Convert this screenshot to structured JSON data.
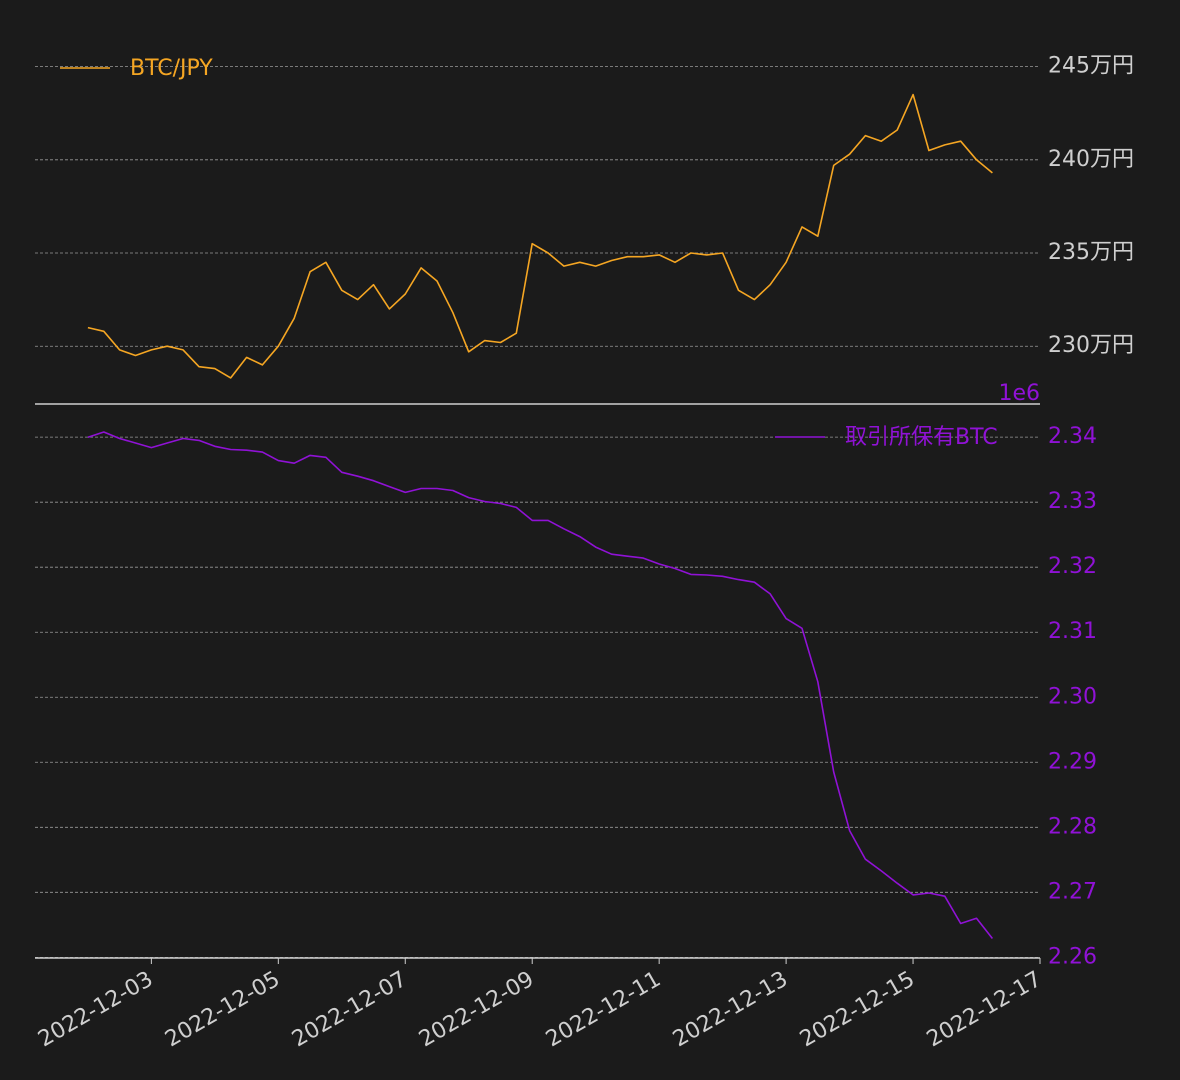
{
  "chart_data": [
    {
      "type": "line",
      "color": "#f5a623",
      "grid": true,
      "legend": "upper left",
      "x": [
        "2022-12-02T00:00",
        "2022-12-02T06:00",
        "2022-12-02T12:00",
        "2022-12-02T18:00",
        "2022-12-03T00:00",
        "2022-12-03T06:00",
        "2022-12-03T12:00",
        "2022-12-03T18:00",
        "2022-12-04T00:00",
        "2022-12-04T06:00",
        "2022-12-04T12:00",
        "2022-12-04T18:00",
        "2022-12-05T00:00",
        "2022-12-05T06:00",
        "2022-12-05T12:00",
        "2022-12-05T18:00",
        "2022-12-06T00:00",
        "2022-12-06T06:00",
        "2022-12-06T12:00",
        "2022-12-06T18:00",
        "2022-12-07T00:00",
        "2022-12-07T06:00",
        "2022-12-07T12:00",
        "2022-12-07T18:00",
        "2022-12-08T00:00",
        "2022-12-08T06:00",
        "2022-12-08T12:00",
        "2022-12-08T18:00",
        "2022-12-09T00:00",
        "2022-12-09T06:00",
        "2022-12-09T12:00",
        "2022-12-09T18:00",
        "2022-12-10T00:00",
        "2022-12-10T06:00",
        "2022-12-10T12:00",
        "2022-12-10T18:00",
        "2022-12-11T00:00",
        "2022-12-11T06:00",
        "2022-12-11T12:00",
        "2022-12-11T18:00",
        "2022-12-12T00:00",
        "2022-12-12T06:00",
        "2022-12-12T12:00",
        "2022-12-12T18:00",
        "2022-12-13T00:00",
        "2022-12-13T06:00",
        "2022-12-13T12:00",
        "2022-12-13T18:00",
        "2022-12-14T00:00",
        "2022-12-14T06:00",
        "2022-12-14T12:00",
        "2022-12-14T18:00",
        "2022-12-15T00:00",
        "2022-12-15T06:00",
        "2022-12-15T12:00",
        "2022-12-15T18:00",
        "2022-12-16T00:00",
        "2022-12-16T06:00"
      ],
      "xlim": [
        "2022-12-01T04:00",
        "2022-12-17T00:00"
      ],
      "series": [
        {
          "name": "BTC/JPY",
          "color": "#f5a623",
          "values": [
            2310000,
            2308000,
            2298000,
            2295000,
            2298000,
            2300000,
            2298000,
            2289000,
            2288000,
            2283000,
            2294000,
            2290000,
            2300000,
            2315000,
            2340000,
            2345000,
            2330000,
            2325000,
            2333000,
            2320000,
            2328000,
            2342000,
            2335000,
            2318000,
            2297000,
            2303000,
            2302000,
            2307000,
            2355000,
            2350000,
            2343000,
            2345000,
            2343000,
            2346000,
            2348000,
            2348000,
            2349000,
            2345000,
            2350000,
            2349000,
            2350000,
            2330000,
            2325000,
            2333000,
            2345000,
            2364000,
            2359000,
            2397000,
            2403000,
            2413000,
            2410000,
            2416000,
            2435000,
            2405000,
            2408000,
            2410000,
            2400000,
            2393000
          ]
        }
      ],
      "ylim": [
        2269000,
        2475000
      ],
      "yticks": [
        {
          "value": 2300000,
          "label": "230万円"
        },
        {
          "value": 2350000,
          "label": "235万円"
        },
        {
          "value": 2400000,
          "label": "240万円"
        },
        {
          "value": 2450000,
          "label": "245万円"
        }
      ]
    },
    {
      "type": "line",
      "color": "#9012d6",
      "grid": true,
      "legend": "upper right",
      "x": [
        "2022-12-02T00:00",
        "2022-12-02T06:00",
        "2022-12-02T12:00",
        "2022-12-02T18:00",
        "2022-12-03T00:00",
        "2022-12-03T06:00",
        "2022-12-03T12:00",
        "2022-12-03T18:00",
        "2022-12-04T00:00",
        "2022-12-04T06:00",
        "2022-12-04T12:00",
        "2022-12-04T18:00",
        "2022-12-05T00:00",
        "2022-12-05T06:00",
        "2022-12-05T12:00",
        "2022-12-05T18:00",
        "2022-12-06T00:00",
        "2022-12-06T06:00",
        "2022-12-06T12:00",
        "2022-12-06T18:00",
        "2022-12-07T00:00",
        "2022-12-07T06:00",
        "2022-12-07T12:00",
        "2022-12-07T18:00",
        "2022-12-08T00:00",
        "2022-12-08T06:00",
        "2022-12-08T12:00",
        "2022-12-08T18:00",
        "2022-12-09T00:00",
        "2022-12-09T06:00",
        "2022-12-09T12:00",
        "2022-12-09T18:00",
        "2022-12-10T00:00",
        "2022-12-10T06:00",
        "2022-12-10T12:00",
        "2022-12-10T18:00",
        "2022-12-11T00:00",
        "2022-12-11T06:00",
        "2022-12-11T12:00",
        "2022-12-11T18:00",
        "2022-12-12T00:00",
        "2022-12-12T06:00",
        "2022-12-12T12:00",
        "2022-12-12T18:00",
        "2022-12-13T00:00",
        "2022-12-13T06:00",
        "2022-12-13T12:00",
        "2022-12-13T18:00",
        "2022-12-14T00:00",
        "2022-12-14T06:00",
        "2022-12-14T12:00",
        "2022-12-14T18:00",
        "2022-12-15T00:00",
        "2022-12-15T06:00",
        "2022-12-15T12:00",
        "2022-12-15T18:00",
        "2022-12-16T00:00",
        "2022-12-16T06:00"
      ],
      "xlim": [
        "2022-12-01T04:00",
        "2022-12-17T00:00"
      ],
      "xticks": [
        "2022-12-03",
        "2022-12-05",
        "2022-12-07",
        "2022-12-09",
        "2022-12-11",
        "2022-12-13",
        "2022-12-15",
        "2022-12-17"
      ],
      "series": [
        {
          "name": "取引所保有BTC",
          "color": "#9012d6",
          "values": [
            2340000,
            2340800,
            2339800,
            2339100,
            2338400,
            2339100,
            2339800,
            2339500,
            2338600,
            2338100,
            2338000,
            2337700,
            2336400,
            2336000,
            2337200,
            2336900,
            2334600,
            2334000,
            2333300,
            2332400,
            2331500,
            2332100,
            2332100,
            2331800,
            2330700,
            2330100,
            2329800,
            2329200,
            2327200,
            2327200,
            2325900,
            2324700,
            2323100,
            2322000,
            2321700,
            2321400,
            2320500,
            2319800,
            2318900,
            2318800,
            2318600,
            2318100,
            2317700,
            2315900,
            2312100,
            2310600,
            2302400,
            2288500,
            2279500,
            2275100,
            2273300,
            2271400,
            2269600,
            2269900,
            2269400,
            2265200,
            2266000,
            2262900
          ]
        }
      ],
      "ylim": [
        2259900,
        2345100
      ],
      "offset_text": "1e6",
      "yticks": [
        {
          "value": 2260000,
          "label": "2.26"
        },
        {
          "value": 2270000,
          "label": "2.27"
        },
        {
          "value": 2280000,
          "label": "2.28"
        },
        {
          "value": 2290000,
          "label": "2.29"
        },
        {
          "value": 2300000,
          "label": "2.30"
        },
        {
          "value": 2310000,
          "label": "2.31"
        },
        {
          "value": 2320000,
          "label": "2.32"
        },
        {
          "value": 2330000,
          "label": "2.33"
        },
        {
          "value": 2340000,
          "label": "2.34"
        }
      ]
    }
  ]
}
